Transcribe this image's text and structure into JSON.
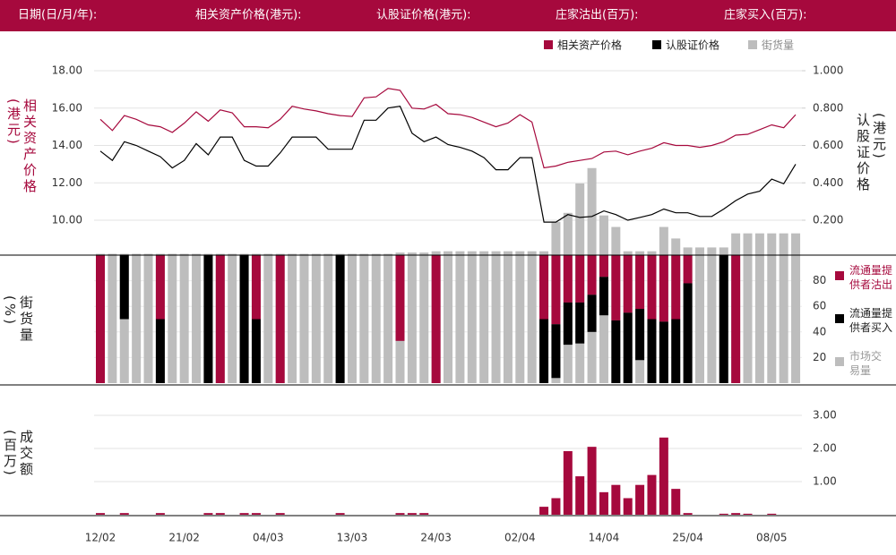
{
  "chart_data": {
    "type": "combo",
    "header": [
      "日期(日/月/年):",
      "相关资产价格(港元):",
      "认股证价格(港元):",
      "庄家沽出(百万):",
      "庄家买入(百万):"
    ],
    "categories": [
      "12/02",
      null,
      null,
      null,
      null,
      null,
      null,
      "21/02",
      null,
      null,
      null,
      null,
      null,
      null,
      "04/03",
      null,
      null,
      null,
      null,
      null,
      null,
      "13/03",
      null,
      null,
      null,
      null,
      null,
      null,
      "24/03",
      null,
      null,
      null,
      null,
      null,
      null,
      "02/04",
      null,
      null,
      null,
      null,
      null,
      null,
      "14/04",
      null,
      null,
      null,
      null,
      null,
      null,
      "25/04",
      null,
      null,
      null,
      null,
      null,
      null,
      "08/05",
      null,
      null
    ],
    "series": [
      {
        "name": "相关资产价格",
        "color": "#a6093d",
        "type": "line",
        "axis": "y",
        "values": [
          15.4,
          14.8,
          15.6,
          15.4,
          15.1,
          15.0,
          14.7,
          15.2,
          15.8,
          15.3,
          15.9,
          15.75,
          15.0,
          15.0,
          14.95,
          15.4,
          16.1,
          15.95,
          15.85,
          15.7,
          15.6,
          15.55,
          16.55,
          16.6,
          17.05,
          16.95,
          16.0,
          15.95,
          16.2,
          15.7,
          15.65,
          15.5,
          15.25,
          15.0,
          15.2,
          15.65,
          15.25,
          12.8,
          12.9,
          13.1,
          13.2,
          13.3,
          13.65,
          13.7,
          13.5,
          13.7,
          13.85,
          14.15,
          14.0,
          14.0,
          13.9,
          14.0,
          14.2,
          14.55,
          14.6,
          14.85,
          15.1,
          14.95,
          15.65
        ]
      },
      {
        "name": "认股证价格",
        "color": "#000000",
        "type": "line",
        "axis": "y2",
        "values": [
          0.57,
          0.52,
          0.62,
          0.6,
          0.57,
          0.54,
          0.48,
          0.52,
          0.61,
          0.55,
          0.645,
          0.645,
          0.52,
          0.49,
          0.49,
          0.56,
          0.645,
          0.645,
          0.645,
          0.58,
          0.58,
          0.58,
          0.735,
          0.735,
          0.8,
          0.81,
          0.665,
          0.62,
          0.645,
          0.605,
          0.59,
          0.57,
          0.535,
          0.47,
          0.47,
          0.535,
          0.535,
          0.19,
          0.19,
          0.23,
          0.215,
          0.22,
          0.25,
          0.23,
          0.2,
          0.215,
          0.23,
          0.26,
          0.24,
          0.24,
          0.22,
          0.22,
          0.26,
          0.305,
          0.34,
          0.355,
          0.42,
          0.395,
          0.5
        ]
      },
      {
        "name": "街货量",
        "color": "#bdbdbd",
        "type": "bar",
        "axis": "y3",
        "values": [
          101,
          101,
          101,
          101,
          101,
          101,
          101,
          101,
          101,
          101,
          101,
          101,
          101,
          101,
          101,
          101,
          101,
          101,
          101,
          101,
          101,
          101,
          101,
          101,
          101,
          102,
          102,
          102,
          103,
          103,
          103,
          103,
          103,
          103,
          103,
          103,
          103,
          103,
          126,
          133,
          156,
          168,
          131,
          122,
          103,
          103,
          103,
          122,
          113,
          106,
          106,
          106,
          106,
          117,
          117,
          117,
          117,
          117,
          117
        ]
      },
      {
        "name": "流通量提供者沽出",
        "color": "#a6093d",
        "type": "hang",
        "axis": "y3",
        "values": [
          100,
          null,
          null,
          null,
          null,
          50,
          null,
          null,
          null,
          null,
          100,
          null,
          null,
          50,
          null,
          100,
          null,
          null,
          null,
          null,
          null,
          null,
          null,
          null,
          null,
          67,
          null,
          null,
          100,
          null,
          null,
          null,
          null,
          null,
          null,
          null,
          null,
          50,
          54,
          37,
          37,
          31,
          17,
          51,
          45,
          42,
          50,
          52,
          50,
          22,
          null,
          null,
          null,
          100,
          null,
          null,
          null,
          null,
          null
        ]
      },
      {
        "name": "流通量提供者买入",
        "color": "#000000",
        "type": "hang",
        "axis": "y3",
        "values": [
          null,
          null,
          50,
          null,
          null,
          50,
          null,
          null,
          null,
          100,
          null,
          null,
          100,
          50,
          null,
          null,
          null,
          null,
          null,
          null,
          100,
          null,
          null,
          null,
          null,
          null,
          null,
          null,
          null,
          null,
          null,
          null,
          null,
          null,
          null,
          null,
          null,
          50,
          42,
          33,
          32,
          29,
          30,
          49,
          55,
          40,
          50,
          48,
          50,
          78,
          null,
          null,
          100,
          null,
          null,
          null,
          null,
          null,
          null
        ]
      }
    ],
    "mid_legend_extra": {
      "label": "市场交易量",
      "color": "#bdbdbd"
    },
    "volume": {
      "color": "#a6093d",
      "values": [
        0.05,
        0,
        0.05,
        0,
        0,
        0.05,
        0,
        0,
        0,
        0.05,
        0.05,
        0,
        0.05,
        0.05,
        0,
        0.05,
        0,
        0,
        0,
        0,
        0.05,
        0,
        0,
        0,
        0,
        0.05,
        0.05,
        0.05,
        0,
        0,
        0,
        0,
        0,
        0,
        0,
        0,
        0,
        0.24,
        0.5,
        1.92,
        1.16,
        2.05,
        0.68,
        0.9,
        0.5,
        0.9,
        1.2,
        2.33,
        0.78,
        0.05,
        0,
        0,
        0.03,
        0.05,
        0.03,
        0,
        0.03,
        0,
        0
      ]
    },
    "ylabel": "相关资产价格(港元)",
    "y2label": "认股证价格(港元)",
    "y3label": "街货量(%)",
    "y4label": "成交额(百万)",
    "ylim": [
      10,
      18
    ],
    "yticks": [
      {
        "value": 10,
        "label": "10.00"
      },
      {
        "value": 12,
        "label": "12.00"
      },
      {
        "value": 14,
        "label": "14.00"
      },
      {
        "value": 16,
        "label": "16.00"
      },
      {
        "value": 18,
        "label": "18.00"
      }
    ],
    "y2lim": [
      0.2,
      1.0
    ],
    "y2ticks": [
      {
        "value": 0.2,
        "label": "0.200"
      },
      {
        "value": 0.4,
        "label": "0.400"
      },
      {
        "value": 0.6,
        "label": "0.600"
      },
      {
        "value": 0.8,
        "label": "0.800"
      },
      {
        "value": 1.0,
        "label": "1.000"
      }
    ],
    "y3lim": [
      0,
      100
    ],
    "y3ticks": [
      20,
      40,
      60,
      80
    ],
    "y4lim": [
      0,
      3
    ],
    "y4ticks": [
      {
        "value": 1,
        "label": "1.00"
      },
      {
        "value": 2,
        "label": "2.00"
      },
      {
        "value": 3,
        "label": "3.00"
      }
    ],
    "grid": true
  }
}
